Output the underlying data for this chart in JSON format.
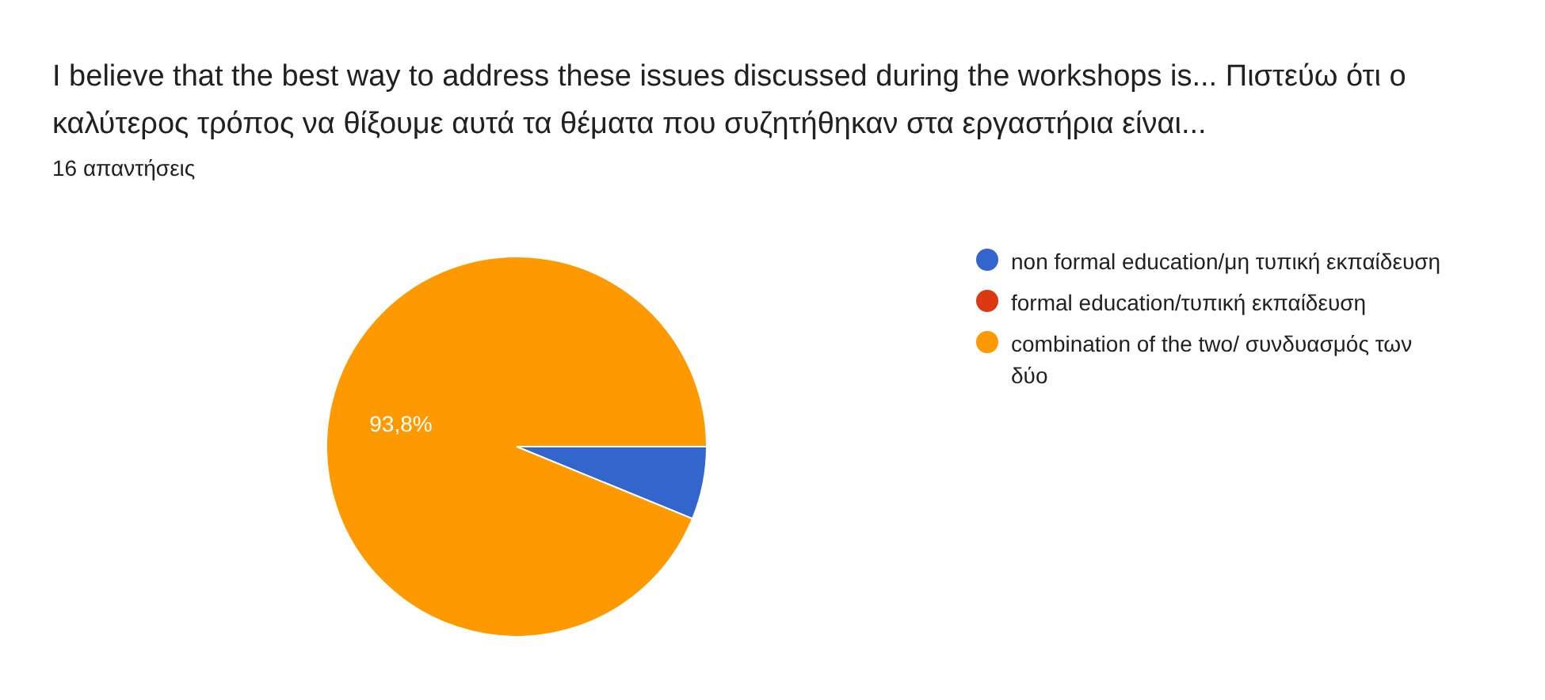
{
  "chart_data": {
    "type": "pie",
    "title": "I believe that the best way to address these issues discussed during the workshops is... Πιστεύω ότι ο καλύτερος τρόπος να θίξουμε αυτά τα θέματα που συζητήθηκαν στα εργαστήρια είναι...",
    "subtitle": "16 απαντήσεις",
    "categories": [
      "non formal education/μη τυπική εκπαίδευση",
      "formal education/τυπική εκπαίδευση",
      "combination of the two/ συνδυασμός των δύο"
    ],
    "values": [
      6.2,
      0,
      93.8
    ],
    "colors": [
      "#3366cc",
      "#dc3912",
      "#ff9900"
    ],
    "value_labels": [
      null,
      null,
      "93,8%"
    ],
    "legend": "right"
  }
}
